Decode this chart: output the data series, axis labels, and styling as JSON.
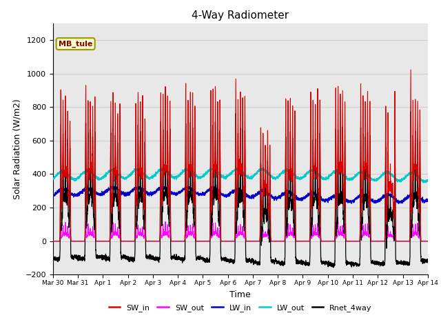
{
  "title": "4-Way Radiometer",
  "xlabel": "Time",
  "ylabel": "Solar Radiation (W/m2)",
  "ylim": [
    -200,
    1300
  ],
  "yticks": [
    -200,
    0,
    200,
    400,
    600,
    800,
    1000,
    1200
  ],
  "plot_bg_color": "#e8e8e8",
  "series": {
    "SW_in": {
      "color": "#dd0000",
      "lw": 0.8
    },
    "SW_out": {
      "color": "#ff00ff",
      "lw": 0.8
    },
    "LW_in": {
      "color": "#0000cc",
      "lw": 0.9
    },
    "LW_out": {
      "color": "#00cccc",
      "lw": 1.0
    },
    "Rnet_4way": {
      "color": "#000000",
      "lw": 0.9
    }
  },
  "label_box": {
    "text": "MB_tule",
    "facecolor": "#ffffcc",
    "edgecolor": "#999900",
    "textcolor": "#880000"
  },
  "n_days": 15,
  "xtick_labels": [
    "Mar 30",
    "Mar 31",
    "Apr 1",
    "Apr 2",
    "Apr 3",
    "Apr 4",
    "Apr 5",
    "Apr 6",
    "Apr 7",
    "Apr 8",
    "Apr 9",
    "Apr 10",
    "Apr 11",
    "Apr 12",
    "Apr 13",
    "Apr 14"
  ],
  "legend_entries": [
    "SW_in",
    "SW_out",
    "LW_in",
    "LW_out",
    "Rnet_4way"
  ],
  "legend_colors": [
    "#dd0000",
    "#ff00ff",
    "#0000cc",
    "#00cccc",
    "#000000"
  ]
}
